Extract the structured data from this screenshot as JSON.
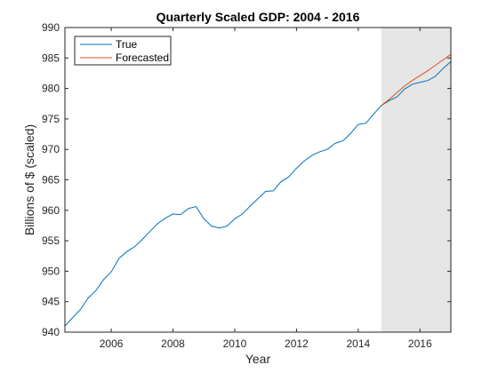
{
  "chart_data": {
    "type": "line",
    "title": "Quarterly Scaled GDP: 2004 - 2016",
    "xlabel": "Year",
    "ylabel": "Billions of $ (scaled)",
    "xlim": [
      2004.5,
      2017.0
    ],
    "ylim": [
      940,
      990
    ],
    "xticks": [
      2006,
      2008,
      2010,
      2012,
      2014,
      2016
    ],
    "yticks": [
      940,
      945,
      950,
      955,
      960,
      965,
      970,
      975,
      980,
      985,
      990
    ],
    "grid": false,
    "legend": "top-left",
    "shaded_region": {
      "x": [
        2014.75,
        2017.0
      ],
      "color": "#e5e5e5"
    },
    "series": [
      {
        "name": "True",
        "color": "#0072bd",
        "x": [
          2004.5,
          2004.75,
          2005.0,
          2005.25,
          2005.5,
          2005.75,
          2006.0,
          2006.25,
          2006.5,
          2006.75,
          2007.0,
          2007.25,
          2007.5,
          2007.75,
          2008.0,
          2008.25,
          2008.5,
          2008.75,
          2009.0,
          2009.25,
          2009.5,
          2009.75,
          2010.0,
          2010.25,
          2010.5,
          2010.75,
          2011.0,
          2011.25,
          2011.5,
          2011.75,
          2012.0,
          2012.25,
          2012.5,
          2012.75,
          2013.0,
          2013.25,
          2013.5,
          2013.75,
          2014.0,
          2014.25,
          2014.5,
          2014.75,
          2015.0,
          2015.25,
          2015.5,
          2015.75,
          2016.0,
          2016.25,
          2016.5,
          2016.75,
          2017.0
        ],
        "values": [
          941.0,
          942.4,
          943.7,
          945.6,
          946.8,
          948.6,
          949.9,
          952.1,
          953.2,
          954.0,
          955.2,
          956.5,
          957.8,
          958.7,
          959.4,
          959.3,
          960.3,
          960.6,
          958.6,
          957.4,
          957.1,
          957.4,
          958.6,
          959.4,
          960.7,
          961.9,
          963.1,
          963.2,
          964.7,
          965.5,
          966.9,
          968.1,
          969.0,
          969.6,
          970.0,
          971.0,
          971.4,
          972.6,
          974.1,
          974.3,
          975.8,
          977.2,
          978.0,
          978.6,
          979.9,
          980.7,
          981.0,
          981.3,
          982.0,
          983.3,
          984.4
        ]
      },
      {
        "name": "Forecasted",
        "color": "#d95319",
        "x": [
          2014.75,
          2015.0,
          2015.25,
          2015.5,
          2015.75,
          2016.0,
          2016.25,
          2016.5,
          2016.75,
          2017.0
        ],
        "values": [
          977.2,
          978.2,
          979.3,
          980.4,
          981.3,
          982.1,
          982.9,
          983.8,
          984.7,
          985.6
        ]
      }
    ]
  }
}
